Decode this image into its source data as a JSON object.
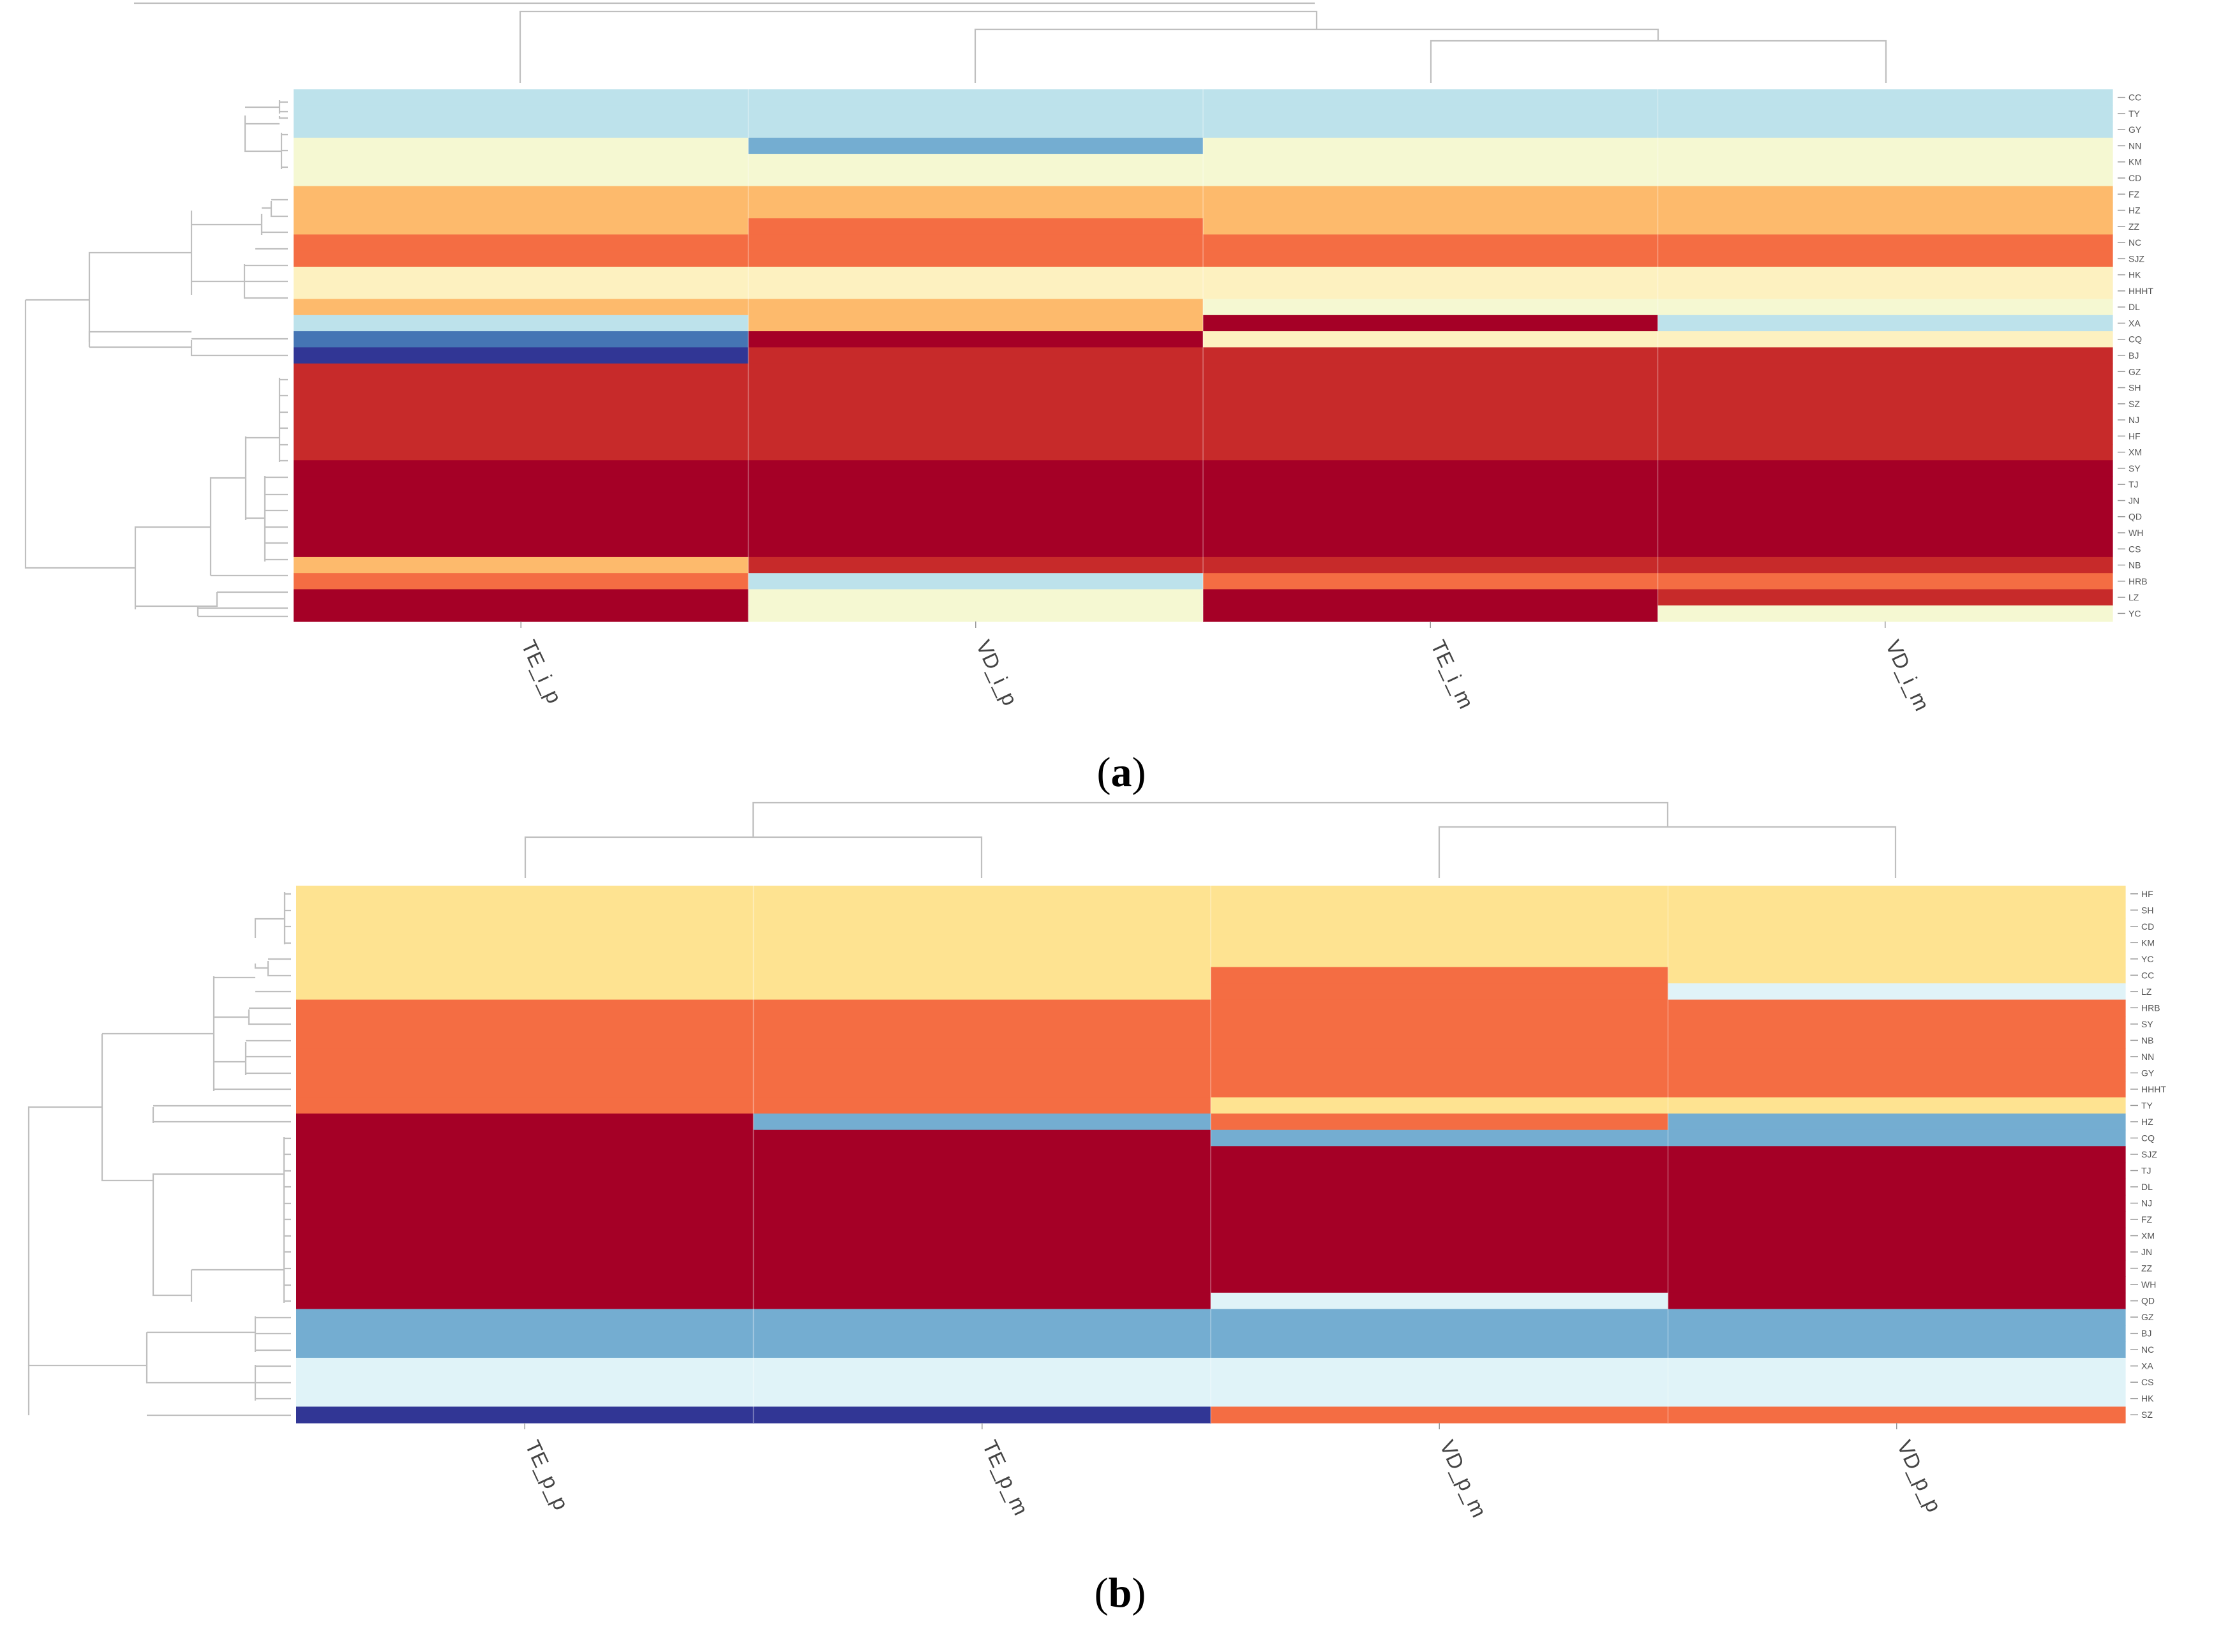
{
  "colors": {
    "A": "#a50026",
    "R": "#c72a2a",
    "O": "#f46d43",
    "L": "#fdba6c",
    "Y": "#fee391",
    "P": "#fdf1c0",
    "C": "#f5f8d2",
    "W": "#e0f3f8",
    "K": "#bde2eb",
    "S": "#74add1",
    "M": "#4575b4",
    "D": "#313695"
  },
  "chart_data": [
    {
      "type": "heatmap",
      "panel_label": "a",
      "columns": [
        "TE_i_p",
        "VD_i_p",
        "TE_i_m",
        "VD_i_m"
      ],
      "rows": [
        {
          "name": "CC",
          "cells": [
            "K",
            "K",
            "K",
            "K"
          ]
        },
        {
          "name": "TY",
          "cells": [
            "K",
            "K",
            "K",
            "K"
          ]
        },
        {
          "name": "GY",
          "cells": [
            "K",
            "K",
            "K",
            "K"
          ]
        },
        {
          "name": "NN",
          "cells": [
            "C",
            "S",
            "C",
            "C"
          ]
        },
        {
          "name": "KM",
          "cells": [
            "C",
            "C",
            "C",
            "C"
          ]
        },
        {
          "name": "CD",
          "cells": [
            "C",
            "C",
            "C",
            "C"
          ]
        },
        {
          "name": "FZ",
          "cells": [
            "L",
            "L",
            "L",
            "L"
          ]
        },
        {
          "name": "HZ",
          "cells": [
            "L",
            "L",
            "L",
            "L"
          ]
        },
        {
          "name": "ZZ",
          "cells": [
            "L",
            "O",
            "L",
            "L"
          ]
        },
        {
          "name": "NC",
          "cells": [
            "O",
            "O",
            "O",
            "O"
          ]
        },
        {
          "name": "SJZ",
          "cells": [
            "O",
            "O",
            "O",
            "O"
          ]
        },
        {
          "name": "HK",
          "cells": [
            "P",
            "P",
            "P",
            "P"
          ]
        },
        {
          "name": "HHHT",
          "cells": [
            "P",
            "P",
            "P",
            "P"
          ]
        },
        {
          "name": "DL",
          "cells": [
            "L",
            "L",
            "C",
            "C"
          ]
        },
        {
          "name": "XA",
          "cells": [
            "K",
            "L",
            "A",
            "K"
          ]
        },
        {
          "name": "CQ",
          "cells": [
            "M",
            "A",
            "P",
            "P"
          ]
        },
        {
          "name": "BJ",
          "cells": [
            "D",
            "R",
            "R",
            "R"
          ]
        },
        {
          "name": "GZ",
          "cells": [
            "R",
            "R",
            "R",
            "R"
          ]
        },
        {
          "name": "SH",
          "cells": [
            "R",
            "R",
            "R",
            "R"
          ]
        },
        {
          "name": "SZ",
          "cells": [
            "R",
            "R",
            "R",
            "R"
          ]
        },
        {
          "name": "NJ",
          "cells": [
            "R",
            "R",
            "R",
            "R"
          ]
        },
        {
          "name": "HF",
          "cells": [
            "R",
            "R",
            "R",
            "R"
          ]
        },
        {
          "name": "XM",
          "cells": [
            "R",
            "R",
            "R",
            "R"
          ]
        },
        {
          "name": "SY",
          "cells": [
            "A",
            "A",
            "A",
            "A"
          ]
        },
        {
          "name": "TJ",
          "cells": [
            "A",
            "A",
            "A",
            "A"
          ]
        },
        {
          "name": "JN",
          "cells": [
            "A",
            "A",
            "A",
            "A"
          ]
        },
        {
          "name": "QD",
          "cells": [
            "A",
            "A",
            "A",
            "A"
          ]
        },
        {
          "name": "WH",
          "cells": [
            "A",
            "A",
            "A",
            "A"
          ]
        },
        {
          "name": "CS",
          "cells": [
            "A",
            "A",
            "A",
            "A"
          ]
        },
        {
          "name": "NB",
          "cells": [
            "L",
            "R",
            "R",
            "R"
          ]
        },
        {
          "name": "HRB",
          "cells": [
            "O",
            "K",
            "O",
            "O"
          ]
        },
        {
          "name": "LZ",
          "cells": [
            "A",
            "C",
            "A",
            "R"
          ]
        },
        {
          "name": "YC",
          "cells": [
            "A",
            "C",
            "A",
            "C"
          ]
        }
      ]
    },
    {
      "type": "heatmap",
      "panel_label": "b",
      "columns": [
        "TE_p_p",
        "TE_p_m",
        "VD_p_m",
        "VD_p_p"
      ],
      "rows": [
        {
          "name": "HF",
          "cells": [
            "Y",
            "Y",
            "Y",
            "Y"
          ]
        },
        {
          "name": "SH",
          "cells": [
            "Y",
            "Y",
            "Y",
            "Y"
          ]
        },
        {
          "name": "CD",
          "cells": [
            "Y",
            "Y",
            "Y",
            "Y"
          ]
        },
        {
          "name": "KM",
          "cells": [
            "Y",
            "Y",
            "Y",
            "Y"
          ]
        },
        {
          "name": "YC",
          "cells": [
            "Y",
            "Y",
            "Y",
            "Y"
          ]
        },
        {
          "name": "CC",
          "cells": [
            "Y",
            "Y",
            "O",
            "Y"
          ]
        },
        {
          "name": "LZ",
          "cells": [
            "Y",
            "Y",
            "O",
            "W"
          ]
        },
        {
          "name": "HRB",
          "cells": [
            "O",
            "O",
            "O",
            "O"
          ]
        },
        {
          "name": "SY",
          "cells": [
            "O",
            "O",
            "O",
            "O"
          ]
        },
        {
          "name": "NB",
          "cells": [
            "O",
            "O",
            "O",
            "O"
          ]
        },
        {
          "name": "NN",
          "cells": [
            "O",
            "O",
            "O",
            "O"
          ]
        },
        {
          "name": "GY",
          "cells": [
            "O",
            "O",
            "O",
            "O"
          ]
        },
        {
          "name": "HHHT",
          "cells": [
            "O",
            "O",
            "O",
            "O"
          ]
        },
        {
          "name": "TY",
          "cells": [
            "O",
            "O",
            "Y",
            "Y"
          ]
        },
        {
          "name": "HZ",
          "cells": [
            "A",
            "S",
            "O",
            "S"
          ]
        },
        {
          "name": "CQ",
          "cells": [
            "A",
            "A",
            "S",
            "S"
          ]
        },
        {
          "name": "SJZ",
          "cells": [
            "A",
            "A",
            "A",
            "A"
          ]
        },
        {
          "name": "TJ",
          "cells": [
            "A",
            "A",
            "A",
            "A"
          ]
        },
        {
          "name": "DL",
          "cells": [
            "A",
            "A",
            "A",
            "A"
          ]
        },
        {
          "name": "NJ",
          "cells": [
            "A",
            "A",
            "A",
            "A"
          ]
        },
        {
          "name": "FZ",
          "cells": [
            "A",
            "A",
            "A",
            "A"
          ]
        },
        {
          "name": "XM",
          "cells": [
            "A",
            "A",
            "A",
            "A"
          ]
        },
        {
          "name": "JN",
          "cells": [
            "A",
            "A",
            "A",
            "A"
          ]
        },
        {
          "name": "ZZ",
          "cells": [
            "A",
            "A",
            "A",
            "A"
          ]
        },
        {
          "name": "WH",
          "cells": [
            "A",
            "A",
            "A",
            "A"
          ]
        },
        {
          "name": "QD",
          "cells": [
            "A",
            "A",
            "W",
            "A"
          ]
        },
        {
          "name": "GZ",
          "cells": [
            "S",
            "S",
            "S",
            "S"
          ]
        },
        {
          "name": "BJ",
          "cells": [
            "S",
            "S",
            "S",
            "S"
          ]
        },
        {
          "name": "NC",
          "cells": [
            "S",
            "S",
            "S",
            "S"
          ]
        },
        {
          "name": "XA",
          "cells": [
            "W",
            "W",
            "W",
            "W"
          ]
        },
        {
          "name": "CS",
          "cells": [
            "W",
            "W",
            "W",
            "W"
          ]
        },
        {
          "name": "HK",
          "cells": [
            "W",
            "W",
            "W",
            "W"
          ]
        },
        {
          "name": "SZ",
          "cells": [
            "D",
            "D",
            "O",
            "O"
          ]
        }
      ]
    }
  ]
}
